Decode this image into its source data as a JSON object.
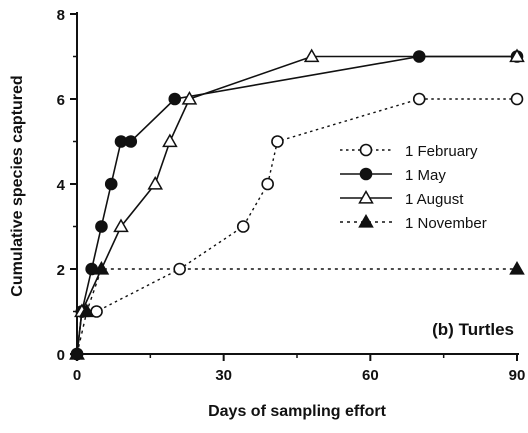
{
  "chart_data": {
    "type": "line",
    "panel_label": "(b) Turtles",
    "xlabel": "Days of sampling effort",
    "ylabel": "Cumulative species captured",
    "xlim": [
      0,
      90
    ],
    "ylim": [
      0,
      8
    ],
    "xticks": [
      0,
      30,
      60,
      90
    ],
    "yticks": [
      0,
      2,
      4,
      6,
      8
    ],
    "grid": false,
    "legend_position": "right",
    "series": [
      {
        "name": "1 February",
        "line_style": "dotted",
        "marker": "circle",
        "marker_fill": "open",
        "points": [
          [
            0,
            0
          ],
          [
            1,
            1
          ],
          [
            4,
            1
          ],
          [
            21,
            2
          ],
          [
            34,
            3
          ],
          [
            39,
            4
          ],
          [
            41,
            5
          ],
          [
            70,
            6
          ],
          [
            90,
            6
          ]
        ]
      },
      {
        "name": "1 May",
        "line_style": "solid",
        "marker": "circle",
        "marker_fill": "filled",
        "points": [
          [
            0,
            0
          ],
          [
            1,
            1
          ],
          [
            3,
            2
          ],
          [
            5,
            3
          ],
          [
            7,
            4
          ],
          [
            9,
            5
          ],
          [
            11,
            5
          ],
          [
            20,
            6
          ],
          [
            70,
            7
          ],
          [
            90,
            7
          ]
        ]
      },
      {
        "name": "1 August",
        "line_style": "solid",
        "marker": "triangle",
        "marker_fill": "open",
        "points": [
          [
            0,
            0
          ],
          [
            1,
            1
          ],
          [
            9,
            3
          ],
          [
            16,
            4
          ],
          [
            19,
            5
          ],
          [
            23,
            6
          ],
          [
            48,
            7
          ],
          [
            90,
            7
          ]
        ]
      },
      {
        "name": "1 November",
        "line_style": "dashed",
        "marker": "triangle",
        "marker_fill": "filled",
        "points": [
          [
            0,
            0
          ],
          [
            2,
            1
          ],
          [
            5,
            2
          ],
          [
            90,
            2
          ]
        ]
      }
    ]
  }
}
